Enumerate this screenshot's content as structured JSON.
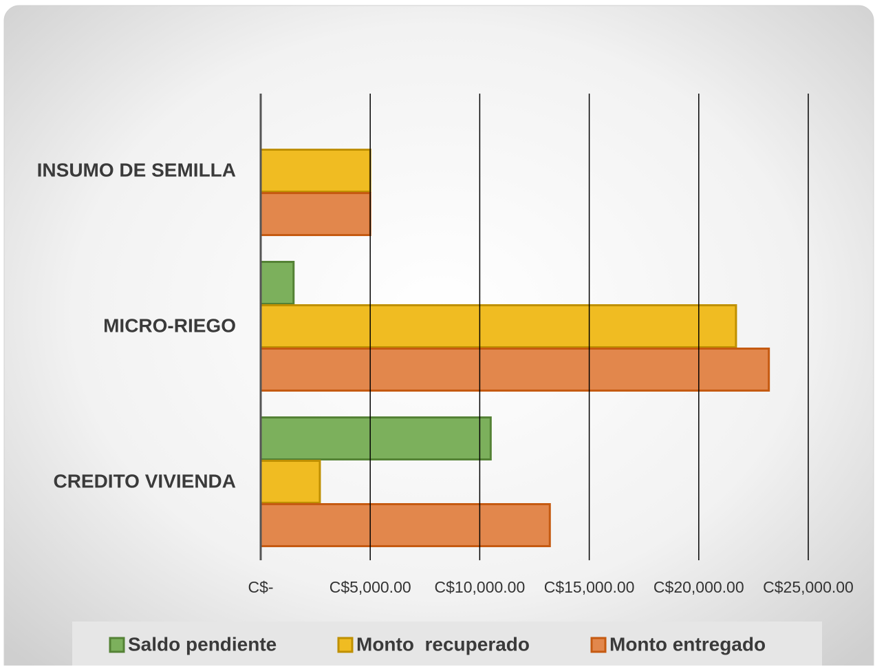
{
  "chart_data": {
    "type": "hbar",
    "categories": [
      "INSUMO DE SEMILLA",
      "MICRO-RIEGO",
      "CREDITO  VIVIENDA"
    ],
    "series": [
      {
        "name": "Saldo pendiente",
        "color": "#7cb05c",
        "edge": "#548235",
        "values": [
          0,
          1500,
          10500
        ]
      },
      {
        "name": "Monto  recuperado",
        "color": "#f0bc22",
        "edge": "#bf9000",
        "values": [
          5000,
          21700,
          2700
        ]
      },
      {
        "name": "Monto entregado",
        "color": "#e2874c",
        "edge": "#c55a11",
        "values": [
          5000,
          23200,
          13200
        ]
      }
    ],
    "xlim": [
      0,
      25000
    ],
    "xticks": [
      {
        "value": 0,
        "label": "C$-"
      },
      {
        "value": 5000,
        "label": "C$5,000.00"
      },
      {
        "value": 10000,
        "label": "C$10,000.00"
      },
      {
        "value": 15000,
        "label": "C$15,000.00"
      },
      {
        "value": 20000,
        "label": "C$20,000.00"
      },
      {
        "value": 25000,
        "label": "C$25,000.00"
      }
    ],
    "grid": true,
    "legend": "bottom"
  }
}
